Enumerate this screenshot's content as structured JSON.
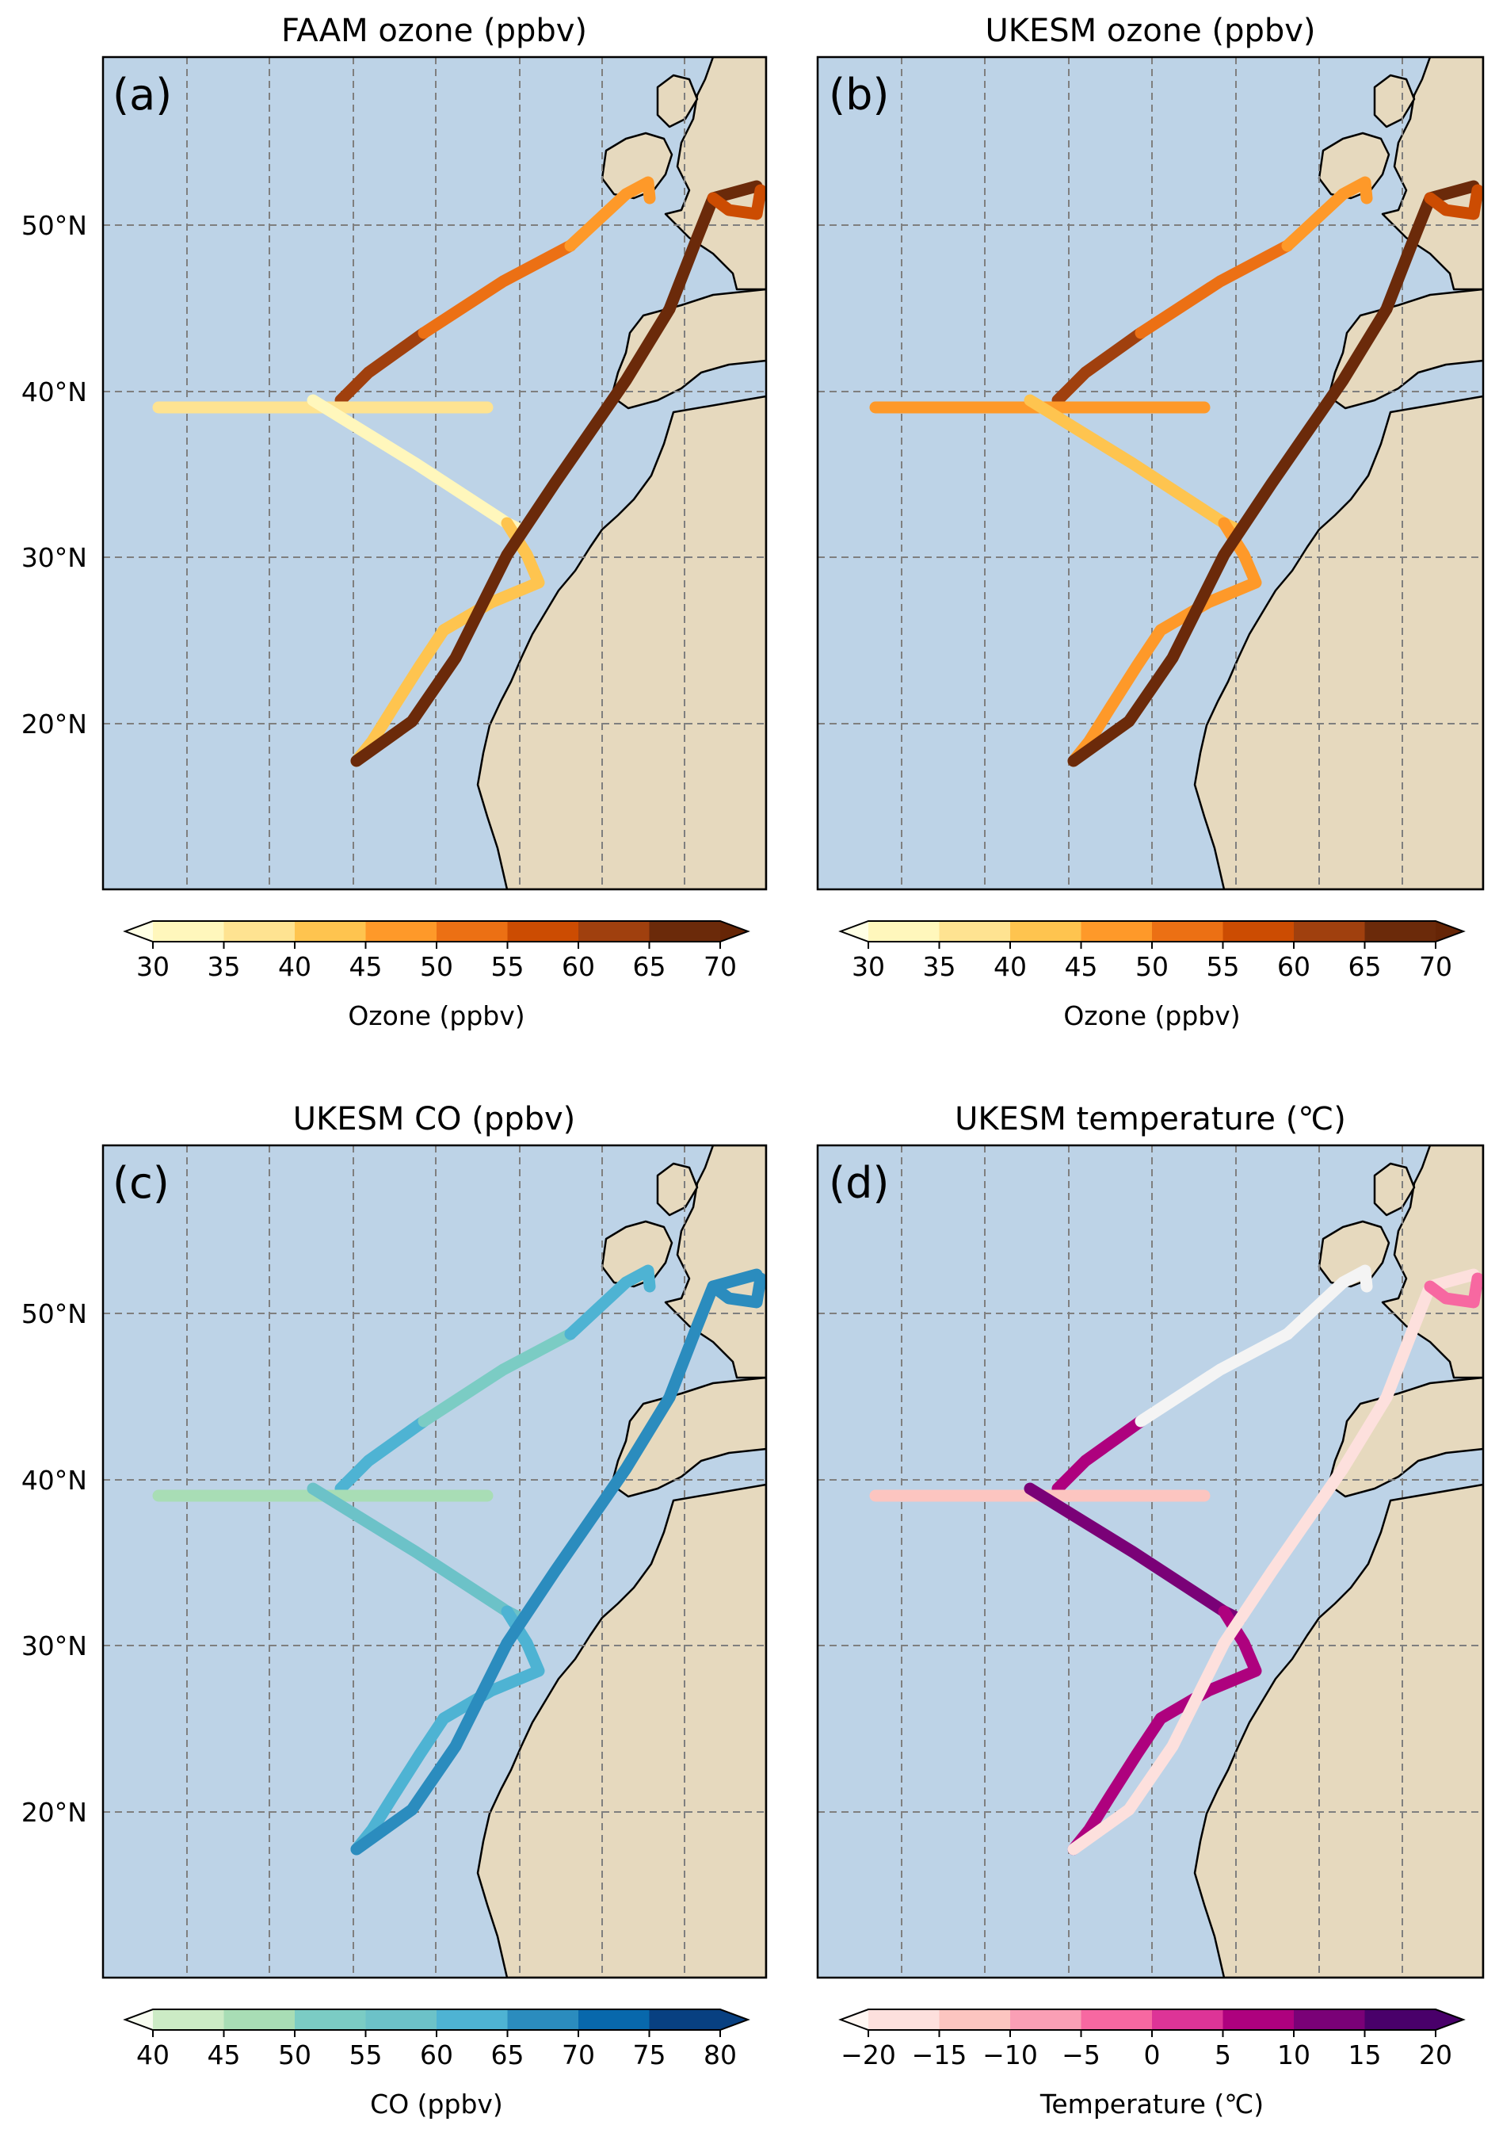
{
  "panels": [
    {
      "letter": "(a)",
      "title": "FAAM ozone (ppbv)",
      "colorbar": {
        "label": "Ozone (ppbv)",
        "ticks": [
          "30",
          "35",
          "40",
          "45",
          "50",
          "55",
          "60",
          "65",
          "70"
        ],
        "colors": [
          "#fff7bc",
          "#fee391",
          "#fec44f",
          "#fe9929",
          "#ec7014",
          "#cc4c02",
          "#a0400e",
          "#6b2a0a"
        ],
        "under": "#ffffe5",
        "over": "#662506"
      },
      "track_colors": [
        "#a0400e",
        "#ec7014",
        "#fe9929",
        "#fee391",
        "#fff7bc",
        "#fec44f",
        "#6b2a0a",
        "#cc4c02"
      ]
    },
    {
      "letter": "(b)",
      "title": "UKESM ozone (ppbv)",
      "colorbar": {
        "label": "Ozone (ppbv)",
        "ticks": [
          "30",
          "35",
          "40",
          "45",
          "50",
          "55",
          "60",
          "65",
          "70"
        ],
        "colors": [
          "#fff7bc",
          "#fee391",
          "#fec44f",
          "#fe9929",
          "#ec7014",
          "#cc4c02",
          "#a0400e",
          "#6b2a0a"
        ],
        "under": "#ffffe5",
        "over": "#662506"
      },
      "track_colors": [
        "#a0400e",
        "#ec7014",
        "#fe9929",
        "#fe9929",
        "#fec44f",
        "#fe9929",
        "#6b2a0a",
        "#cc4c02"
      ]
    },
    {
      "letter": "(c)",
      "title": "UKESM CO (ppbv)",
      "colorbar": {
        "label": "CO (ppbv)",
        "ticks": [
          "40",
          "45",
          "50",
          "55",
          "60",
          "65",
          "70",
          "75",
          "80"
        ],
        "colors": [
          "#ccebc5",
          "#a8ddb5",
          "#7bccc4",
          "#6cc2c8",
          "#4eb3d3",
          "#2b8cbe",
          "#0868ac",
          "#084081"
        ],
        "under": "#f7fcf0",
        "over": "#084081"
      },
      "track_colors": [
        "#4eb3d3",
        "#7bccc4",
        "#4eb3d3",
        "#a8ddb5",
        "#6cc2c8",
        "#4eb3d3",
        "#2b8cbe",
        "#2b8cbe"
      ]
    },
    {
      "letter": "(d)",
      "title": "UKESM temperature (℃)",
      "colorbar": {
        "label": "Temperature (℃)",
        "ticks": [
          "−20",
          "−15",
          "−10",
          "−5",
          "0",
          "5",
          "10",
          "15",
          "20"
        ],
        "colors": [
          "#fde0dd",
          "#fcc5c0",
          "#fa9fb5",
          "#f768a1",
          "#dd3497",
          "#ae017e",
          "#7a0177",
          "#49006a"
        ],
        "under": "#fff7f3",
        "over": "#49006a"
      },
      "track_colors": [
        "#ae017e",
        "#f4f4f4",
        "#f4f4f4",
        "#fcc5c0",
        "#7a0177",
        "#ae017e",
        "#fde0dd",
        "#f768a1"
      ]
    }
  ],
  "map": {
    "ocean_color": "#bdd3e7",
    "land_color": "#e6d9be",
    "gridline_color": "#7f7f7f",
    "lat_ticks": [
      "20°N",
      "30°N",
      "40°N",
      "50°N"
    ]
  }
}
